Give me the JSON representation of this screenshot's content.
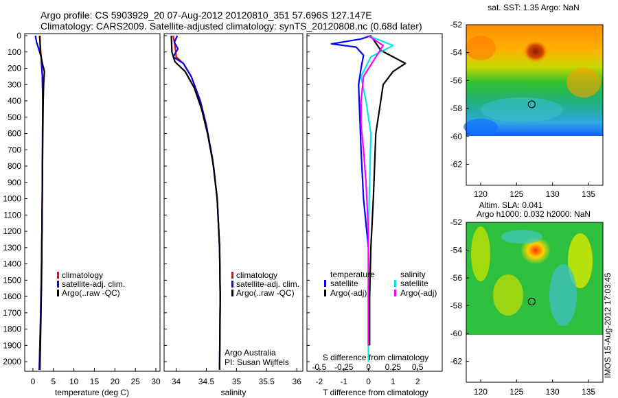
{
  "header": {
    "line1": "Argo profile: CS 5903929_20 07-Aug-2012 20120810_351 57.696S 127.147E",
    "line2": "Climatology: CARS2009. Satellite-adjusted climatology: synTS_20120808.nc (0.68d later)"
  },
  "side_text": "IMOS 15-Aug-2012 17:03:45",
  "credit": {
    "line1": "Argo Australia",
    "line2": "PI: Susan Wijffels"
  },
  "colors": {
    "climatology": "#ff0000",
    "satellite": "#0000ff",
    "argo": "#000000",
    "sal_satellite": "#00e5ee",
    "sal_argo": "#ff00ff"
  },
  "chart_data": [
    {
      "type": "line",
      "xlabel": "temperature (deg C)",
      "ylabel": "",
      "xlim": [
        -2,
        31
      ],
      "ylim": [
        2050,
        0
      ],
      "xticks": [
        0,
        5,
        10,
        15,
        20,
        25,
        30
      ],
      "yticks": [
        0,
        100,
        200,
        300,
        400,
        500,
        600,
        700,
        800,
        900,
        1000,
        1100,
        1200,
        1300,
        1400,
        1500,
        1600,
        1700,
        1800,
        1900,
        2000
      ],
      "legend": [
        "climatology",
        "satellite-adj. clim.",
        "Argo(..raw -QC)"
      ],
      "series": [
        {
          "name": "climatology",
          "color": "#ff0000",
          "points": [
            [
              1.6,
              0
            ],
            [
              1.8,
              60
            ],
            [
              2.0,
              130
            ],
            [
              2.3,
              250
            ],
            [
              2.4,
              400
            ],
            [
              2.35,
              600
            ],
            [
              2.3,
              900
            ],
            [
              2.2,
              1200
            ],
            [
              2.05,
              1500
            ],
            [
              1.8,
              1800
            ],
            [
              1.55,
              2050
            ]
          ]
        },
        {
          "name": "satellite-adj. clim.",
          "color": "#0000ff",
          "points": [
            [
              0.6,
              0
            ],
            [
              0.9,
              40
            ],
            [
              1.4,
              80
            ],
            [
              2.0,
              130
            ],
            [
              2.3,
              250
            ],
            [
              2.4,
              400
            ],
            [
              2.35,
              600
            ],
            [
              2.3,
              900
            ],
            [
              2.2,
              1200
            ],
            [
              2.05,
              1500
            ],
            [
              1.8,
              1800
            ],
            [
              1.55,
              2050
            ]
          ]
        },
        {
          "name": "Argo(..raw -QC)",
          "color": "#000000",
          "points": [
            [
              1.7,
              0
            ],
            [
              1.8,
              100
            ],
            [
              2.3,
              170
            ],
            [
              2.8,
              220
            ],
            [
              2.6,
              300
            ],
            [
              2.5,
              400
            ],
            [
              2.4,
              600
            ],
            [
              2.3,
              900
            ],
            [
              2.2,
              1200
            ],
            [
              2.1,
              1500
            ],
            [
              1.9,
              1800
            ],
            [
              1.7,
              2050
            ]
          ]
        }
      ]
    },
    {
      "type": "line",
      "xlabel": "salinity",
      "ylabel": "",
      "xlim": [
        33.8,
        36.1
      ],
      "ylim": [
        2050,
        0
      ],
      "xticks": [
        34,
        34.5,
        35,
        35.5,
        36
      ],
      "legend": [
        "climatology",
        "satellite-adj. clim.",
        "Argo(..raw -QC)"
      ],
      "series": [
        {
          "name": "climatology",
          "color": "#ff0000",
          "points": [
            [
              33.95,
              0
            ],
            [
              33.98,
              60
            ],
            [
              34.0,
              130
            ],
            [
              34.12,
              170
            ],
            [
              34.25,
              250
            ],
            [
              34.4,
              400
            ],
            [
              34.5,
              550
            ],
            [
              34.6,
              750
            ],
            [
              34.68,
              1000
            ],
            [
              34.72,
              1300
            ],
            [
              34.73,
              1600
            ],
            [
              34.72,
              2050
            ]
          ]
        },
        {
          "name": "satellite-adj. clim.",
          "color": "#0000ff",
          "points": [
            [
              34.02,
              0
            ],
            [
              33.97,
              40
            ],
            [
              34.03,
              80
            ],
            [
              33.95,
              130
            ],
            [
              34.12,
              170
            ],
            [
              34.25,
              250
            ],
            [
              34.4,
              400
            ],
            [
              34.5,
              550
            ],
            [
              34.6,
              750
            ],
            [
              34.68,
              1000
            ],
            [
              34.72,
              1300
            ],
            [
              34.73,
              1600
            ],
            [
              34.72,
              2050
            ]
          ]
        },
        {
          "name": "Argo(..raw -QC)",
          "color": "#000000",
          "points": [
            [
              33.92,
              0
            ],
            [
              33.93,
              100
            ],
            [
              33.98,
              160
            ],
            [
              34.15,
              220
            ],
            [
              34.3,
              320
            ],
            [
              34.42,
              450
            ],
            [
              34.52,
              600
            ],
            [
              34.62,
              800
            ],
            [
              34.68,
              1000
            ],
            [
              34.72,
              1300
            ],
            [
              34.73,
              1600
            ],
            [
              34.72,
              2050
            ]
          ]
        }
      ]
    },
    {
      "type": "line",
      "xlabel": "T difference from climatology",
      "xlabel_top": "S difference from climatology",
      "xlim": [
        -2.5,
        3.0
      ],
      "xlim_top": [
        -0.625,
        0.75
      ],
      "ylim": [
        2050,
        0
      ],
      "xticks": [
        -2,
        -1,
        0,
        1,
        2
      ],
      "xticks_top": [
        -0.5,
        -0.25,
        0,
        0.25,
        0.5
      ],
      "legend_left_title": "temperature",
      "legend_right_title": "salinity",
      "legend": [
        "satellite",
        "Argo(-adj)",
        "satellite",
        "Argo(-adj)"
      ],
      "series": [
        {
          "name": "satellite",
          "color": "#0000ff",
          "points": [
            [
              0.1,
              0
            ],
            [
              -0.3,
              20
            ],
            [
              -1.5,
              50
            ],
            [
              -0.5,
              70
            ],
            [
              -0.2,
              120
            ],
            [
              -0.3,
              200
            ],
            [
              -0.4,
              300
            ],
            [
              -0.35,
              500
            ],
            [
              -0.3,
              700
            ],
            [
              -0.2,
              1000
            ],
            [
              0,
              1300
            ],
            [
              0,
              1600
            ],
            [
              0,
              1900
            ]
          ]
        },
        {
          "name": "Argo(-adj)",
          "color": "#000000",
          "points": [
            [
              0.1,
              0
            ],
            [
              0.5,
              90
            ],
            [
              1.5,
              170
            ],
            [
              1.0,
              220
            ],
            [
              0.6,
              300
            ],
            [
              0.5,
              400
            ],
            [
              0.3,
              600
            ],
            [
              0.25,
              800
            ],
            [
              0.2,
              1000
            ],
            [
              0.1,
              1300
            ],
            [
              0.05,
              1600
            ],
            [
              0.05,
              1900
            ]
          ]
        },
        {
          "name": "satellite",
          "color": "#00e5ee",
          "points": [
            [
              0.0,
              0
            ],
            [
              1.0,
              60
            ],
            [
              0.1,
              130
            ],
            [
              -0.3,
              250
            ],
            [
              -0.1,
              400
            ],
            [
              0.1,
              600
            ],
            [
              0.05,
              900
            ],
            [
              0,
              1200
            ],
            [
              0,
              1600
            ],
            [
              0,
              2000
            ]
          ]
        },
        {
          "name": "Argo(-adj)",
          "color": "#ff00ff",
          "points": [
            [
              0.0,
              0
            ],
            [
              0.6,
              60
            ],
            [
              -0.2,
              250
            ],
            [
              -0.3,
              400
            ],
            [
              -0.3,
              550
            ],
            [
              -0.2,
              700
            ],
            [
              -0.1,
              900
            ],
            [
              0,
              1200
            ],
            [
              0,
              1600
            ],
            [
              0,
              1900
            ]
          ]
        }
      ]
    },
    {
      "type": "heatmap",
      "title": "sat. SST: 1.35 Argo: NaN",
      "xlim": [
        118,
        137
      ],
      "ylim": [
        -63.5,
        -52
      ],
      "xticks": [
        120,
        125,
        130,
        135
      ],
      "yticks": [
        -52,
        -54,
        -56,
        -58,
        -60,
        -62
      ],
      "marker": [
        127.1,
        -57.7
      ]
    },
    {
      "type": "heatmap",
      "title_line1": "Altim. SLA: 0.041",
      "title_line2": "Argo h1000: 0.032 h2000: NaN",
      "xlim": [
        118,
        137
      ],
      "ylim": [
        -63.5,
        -52
      ],
      "xticks": [
        120,
        125,
        130,
        135
      ],
      "yticks": [
        -52,
        -54,
        -56,
        -58,
        -60,
        -62
      ],
      "marker": [
        127.1,
        -57.7
      ]
    }
  ]
}
